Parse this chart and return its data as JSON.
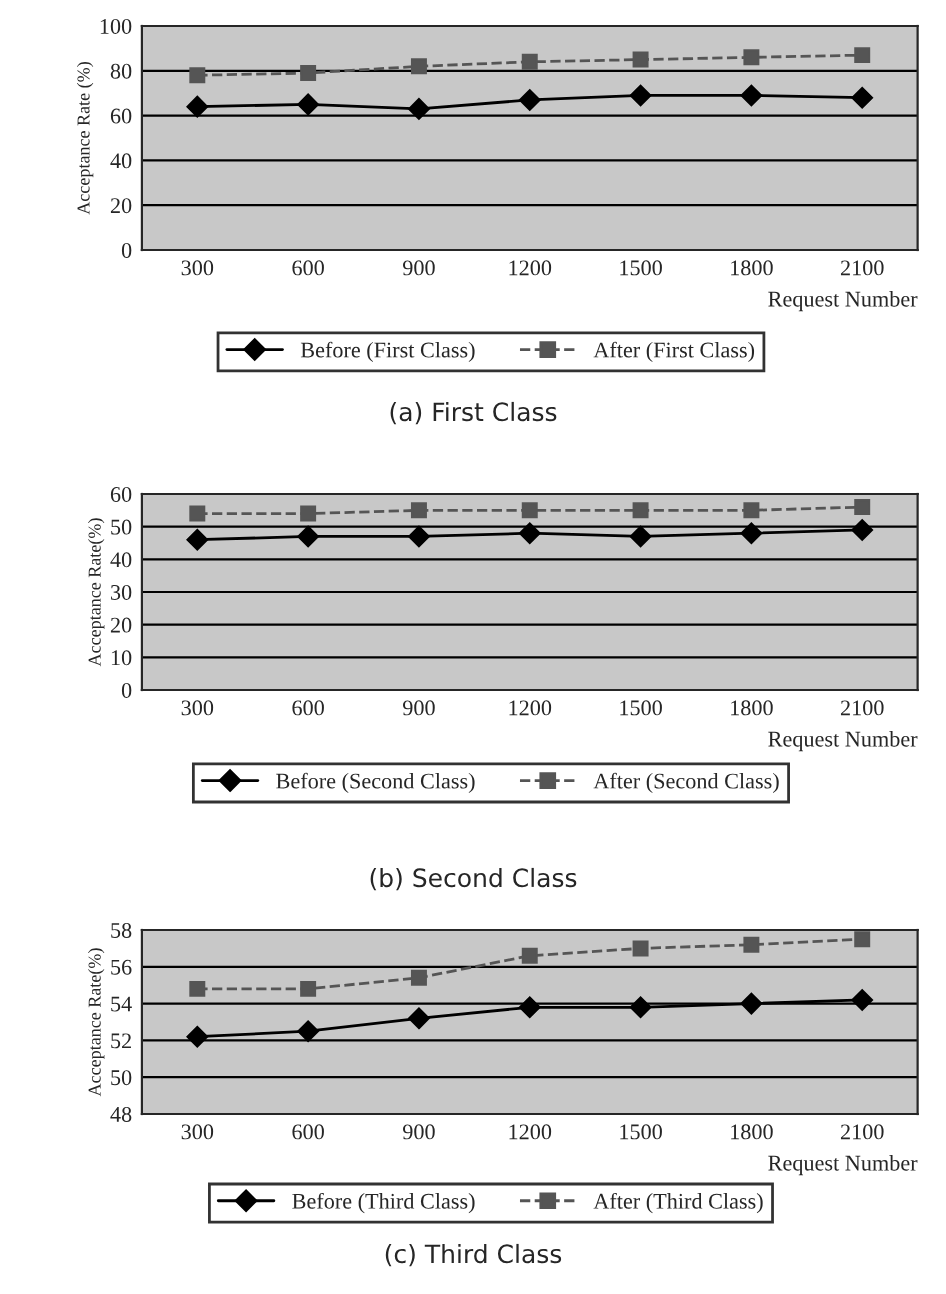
{
  "chart_data": [
    {
      "type": "line",
      "title": "(a) First Class",
      "xlabel": "Request Number",
      "ylabel": "Acceptance Rate (%)",
      "categories": [
        "300",
        "600",
        "900",
        "1200",
        "1500",
        "1800",
        "2100"
      ],
      "ylim": [
        0,
        100
      ],
      "yticks": [
        0,
        20,
        40,
        60,
        80,
        100
      ],
      "grid": "y",
      "legend": "bottom",
      "series": [
        {
          "name": "Before (First Class)",
          "color": "#000000",
          "marker": "diamond",
          "line_style": "solid",
          "values": [
            64,
            65,
            63,
            67,
            69,
            69,
            68
          ]
        },
        {
          "name": "After (First Class)",
          "color": "#555555",
          "marker": "square",
          "line_style": "dashed",
          "values": [
            78,
            79,
            82,
            84,
            85,
            86,
            87
          ]
        }
      ]
    },
    {
      "type": "line",
      "title": "(b) Second Class",
      "xlabel": "Request Number",
      "ylabel": "Acceptance Rate(%)",
      "categories": [
        "300",
        "600",
        "900",
        "1200",
        "1500",
        "1800",
        "2100"
      ],
      "ylim": [
        0,
        60
      ],
      "yticks": [
        0,
        10,
        20,
        30,
        40,
        50,
        60
      ],
      "grid": "y",
      "legend": "bottom",
      "series": [
        {
          "name": "Before (Second Class)",
          "color": "#000000",
          "marker": "diamond",
          "line_style": "solid",
          "values": [
            46,
            47,
            47,
            48,
            47,
            48,
            49
          ]
        },
        {
          "name": "After (Second Class)",
          "color": "#555555",
          "marker": "square",
          "line_style": "dashed",
          "values": [
            54,
            54,
            55,
            55,
            55,
            55,
            56
          ]
        }
      ]
    },
    {
      "type": "line",
      "title": "(c) Third Class",
      "xlabel": "Request Number",
      "ylabel": "Acceptance Rate(%)",
      "categories": [
        "300",
        "600",
        "900",
        "1200",
        "1500",
        "1800",
        "2100"
      ],
      "ylim": [
        48,
        58
      ],
      "yticks": [
        48,
        50,
        52,
        54,
        56,
        58
      ],
      "grid": "y",
      "legend": "bottom",
      "series": [
        {
          "name": "Before (Third Class)",
          "color": "#000000",
          "marker": "diamond",
          "line_style": "solid",
          "values": [
            52.2,
            52.5,
            53.2,
            53.8,
            53.8,
            54.0,
            54.2
          ]
        },
        {
          "name": "After (Third Class)",
          "color": "#555555",
          "marker": "square",
          "line_style": "dashed",
          "values": [
            54.8,
            54.8,
            55.4,
            56.6,
            57.0,
            57.2,
            57.5
          ]
        }
      ]
    }
  ]
}
